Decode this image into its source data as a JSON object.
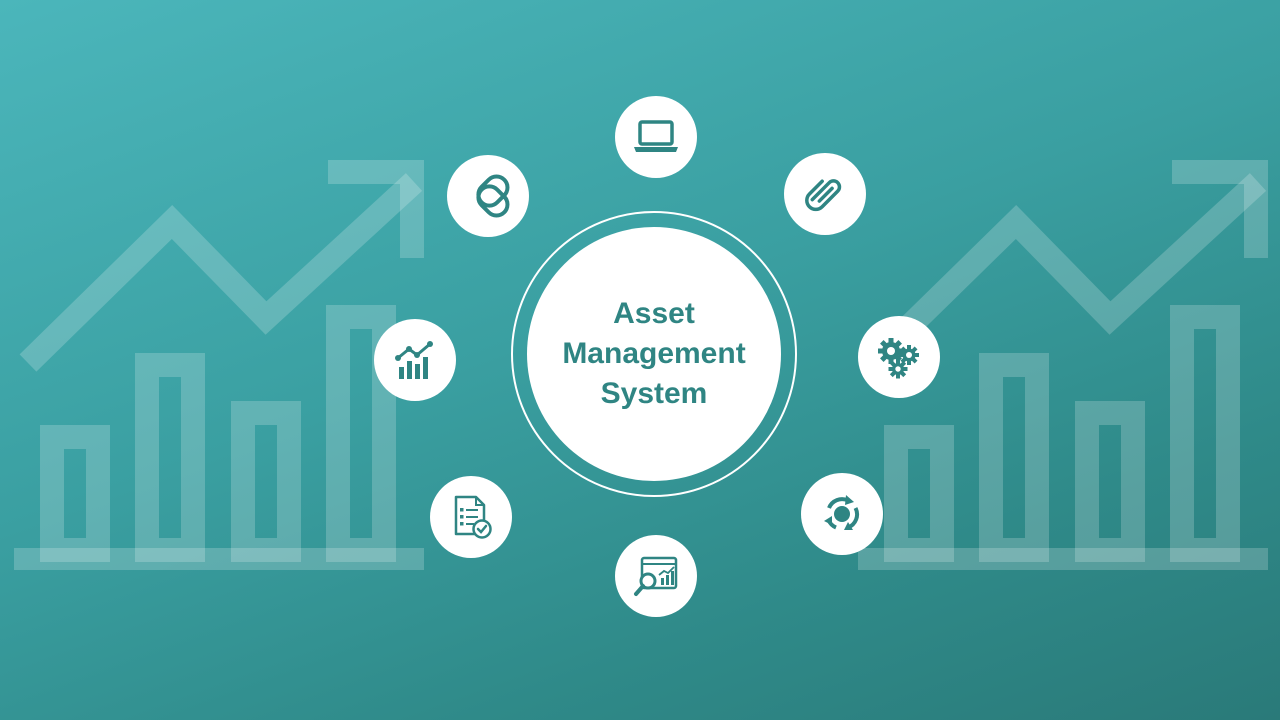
{
  "title_lines": [
    "Asset",
    "Management",
    "System"
  ],
  "colors": {
    "accent": "#2f8583",
    "background_start": "#4bb6bb",
    "background_end": "#2a7a79",
    "node_fill": "#ffffff"
  },
  "nodes": [
    {
      "icon": "laptop-icon"
    },
    {
      "icon": "paperclip-icon"
    },
    {
      "icon": "gears-icon"
    },
    {
      "icon": "cycle-arrows-icon"
    },
    {
      "icon": "analytics-search-icon"
    },
    {
      "icon": "checklist-document-icon"
    },
    {
      "icon": "growth-chart-icon"
    },
    {
      "icon": "chain-link-icon"
    }
  ]
}
